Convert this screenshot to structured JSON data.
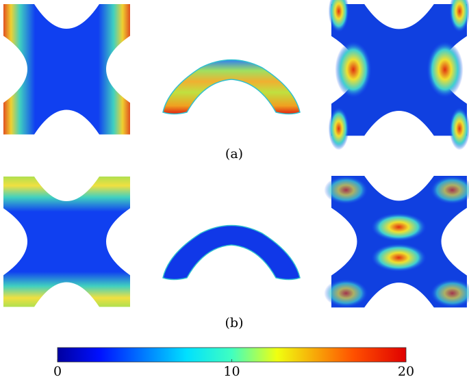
{
  "panels": [
    {
      "label": "(a)"
    },
    {
      "label": "(b)"
    }
  ],
  "colorbar": {
    "lim": [
      0,
      20
    ],
    "ticks": [
      0,
      10,
      20
    ]
  }
}
